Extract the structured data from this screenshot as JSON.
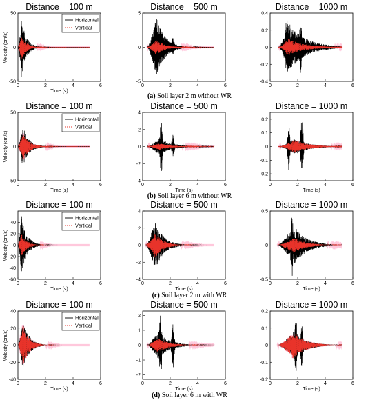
{
  "legend": {
    "horizontal": "Horizontal",
    "vertical": "Vertical"
  },
  "colors": {
    "horizontal": "#000000",
    "vertical": "#e8332a",
    "vertical_halo": "#ffc8dc"
  },
  "rows": [
    {
      "caption_letter": "(a)",
      "caption_text": " Soil layer 2 m without WR",
      "panels": [
        {
          "title": "Distance = 100 m",
          "ylabel": "Velocity (cm/s)",
          "xlabel": "Time (s)",
          "xlim": [
            0,
            6
          ],
          "ylim": [
            -50,
            50
          ],
          "yticks": [
            "50",
            "0",
            "-50"
          ],
          "ytick_values": [
            50,
            0,
            -50
          ],
          "xticks": [
            "0",
            "2",
            "4",
            "6"
          ],
          "legend": true,
          "signal": {
            "start": 0.0,
            "peak": 0.25,
            "decay": 0.35,
            "end": 5.2,
            "amp_h": 45,
            "amp_v": 20,
            "bursts": []
          }
        },
        {
          "title": "Distance = 500 m",
          "ylabel": "",
          "xlabel": "",
          "xlim": [
            0,
            6
          ],
          "ylim": [
            -5,
            5
          ],
          "yticks": [
            "5",
            "0",
            "-5"
          ],
          "ytick_values": [
            5,
            0,
            -5
          ],
          "xticks": [
            "0",
            "2",
            "4",
            "6"
          ],
          "legend": false,
          "signal": {
            "start": 0.3,
            "peak": 1.0,
            "decay": 0.6,
            "end": 5.2,
            "amp_h": 4.5,
            "amp_v": 1.2,
            "bursts": [
              [
                1.2,
                3.8
              ],
              [
                2.2,
                1.5
              ]
            ]
          }
        },
        {
          "title": "Distance = 1000 m",
          "ylabel": "",
          "xlabel": "",
          "xlim": [
            0,
            6
          ],
          "ylim": [
            -0.4,
            0.4
          ],
          "yticks": [
            "0.4",
            "0.2",
            "0",
            "-0.2",
            "-0.4"
          ],
          "ytick_values": [
            0.4,
            0.2,
            0,
            -0.2,
            -0.4
          ],
          "xticks": [
            "0",
            "2",
            "4",
            "6"
          ],
          "legend": false,
          "signal": {
            "start": 0.6,
            "peak": 1.3,
            "decay": 1.2,
            "end": 5.2,
            "amp_h": 0.3,
            "amp_v": 0.1,
            "bursts": [
              [
                1.2,
                0.35
              ],
              [
                2.2,
                0.3
              ]
            ]
          }
        }
      ]
    },
    {
      "caption_letter": "(b)",
      "caption_text": " Soil layer 6 m without WR",
      "panels": [
        {
          "title": "Distance = 100 m",
          "ylabel": "Velocity (cm/s)",
          "xlabel": "Time (s)",
          "xlim": [
            0,
            6
          ],
          "ylim": [
            -50,
            50
          ],
          "yticks": [
            "50",
            "0",
            "-50"
          ],
          "ytick_values": [
            50,
            0,
            -50
          ],
          "xticks": [
            "0",
            "2",
            "4",
            "6"
          ],
          "legend": true,
          "signal": {
            "start": 0.0,
            "peak": 0.35,
            "decay": 0.45,
            "end": 5.2,
            "amp_h": 30,
            "amp_v": 22,
            "bursts": []
          }
        },
        {
          "title": "Distance = 500 m",
          "ylabel": "",
          "xlabel": "Time (s)",
          "xlim": [
            0,
            6
          ],
          "ylim": [
            -4,
            4
          ],
          "yticks": [
            "4",
            "2",
            "0",
            "-2",
            "-4"
          ],
          "ytick_values": [
            4,
            2,
            0,
            -2,
            -4
          ],
          "xticks": [
            "0",
            "2",
            "4",
            "6"
          ],
          "legend": false,
          "signal": {
            "start": 0.3,
            "peak": 1.2,
            "decay": 0.9,
            "end": 5.2,
            "amp_h": 1.0,
            "amp_v": 0.4,
            "bursts": [
              [
                1.35,
                3.2
              ],
              [
                2.2,
                1.4
              ]
            ]
          }
        },
        {
          "title": "Distance = 1000 m",
          "ylabel": "",
          "xlabel": "Time (s)",
          "xlim": [
            0,
            6
          ],
          "ylim": [
            -0.25,
            0.25
          ],
          "yticks": [
            "0.2",
            "0.1",
            "0",
            "-0.1",
            "-0.2"
          ],
          "ytick_values": [
            0.2,
            0.1,
            0,
            -0.1,
            -0.2
          ],
          "xticks": [
            "0",
            "2",
            "4",
            "6"
          ],
          "legend": false,
          "signal": {
            "start": 0.6,
            "peak": 1.8,
            "decay": 1.0,
            "end": 5.2,
            "amp_h": 0.06,
            "amp_v": 0.05,
            "bursts": [
              [
                1.35,
                0.18
              ],
              [
                2.3,
                0.22
              ]
            ]
          }
        }
      ]
    },
    {
      "caption_letter": "(c)",
      "caption_text": " Soil layer 2 m with WR",
      "panels": [
        {
          "title": "Distance = 100 m",
          "ylabel": "Velocity (cm/s)",
          "xlabel": "Time (s)",
          "xlim": [
            0,
            6
          ],
          "ylim": [
            -60,
            60
          ],
          "yticks": [
            "40",
            "20",
            "0",
            "-20",
            "-40",
            "-60"
          ],
          "ytick_values": [
            40,
            20,
            0,
            -20,
            -40,
            -60
          ],
          "xticks": [
            "0",
            "2",
            "4",
            "6"
          ],
          "legend": true,
          "signal": {
            "start": 0.0,
            "peak": 0.25,
            "decay": 0.4,
            "end": 5.2,
            "amp_h": 55,
            "amp_v": 20,
            "bursts": []
          }
        },
        {
          "title": "Distance = 500 m",
          "ylabel": "",
          "xlabel": "Time (s)",
          "xlim": [
            0,
            6
          ],
          "ylim": [
            -4,
            4
          ],
          "yticks": [
            "4",
            "2",
            "0",
            "-2",
            "-4"
          ],
          "ytick_values": [
            4,
            2,
            0,
            -2,
            -4
          ],
          "xticks": [
            "0",
            "2",
            "4",
            "6"
          ],
          "legend": false,
          "signal": {
            "start": 0.2,
            "peak": 0.9,
            "decay": 0.6,
            "end": 5.2,
            "amp_h": 3.0,
            "amp_v": 1.5,
            "bursts": []
          }
        },
        {
          "title": "Distance = 1000 m",
          "ylabel": "",
          "xlabel": "Time (s)",
          "xlim": [
            0,
            6
          ],
          "ylim": [
            -0.5,
            0.5
          ],
          "yticks": [
            "0.5",
            "0",
            "-0.5"
          ],
          "ytick_values": [
            0.5,
            0,
            -0.5
          ],
          "xticks": [
            "0",
            "2",
            "4",
            "6"
          ],
          "legend": false,
          "signal": {
            "start": 0.5,
            "peak": 1.7,
            "decay": 0.9,
            "end": 5.2,
            "amp_h": 0.3,
            "amp_v": 0.12,
            "bursts": [
              [
                1.6,
                0.45
              ]
            ]
          }
        }
      ]
    },
    {
      "caption_letter": "(d)",
      "caption_text": " Soil layer 6 m with WR",
      "panels": [
        {
          "title": "Distance = 100 m",
          "ylabel": "Velocity (cm/s)",
          "xlabel": "Time (s)",
          "xlim": [
            0,
            6
          ],
          "ylim": [
            -40,
            40
          ],
          "yticks": [
            "40",
            "20",
            "0",
            "-20",
            "-40"
          ],
          "ytick_values": [
            40,
            20,
            0,
            -20,
            -40
          ],
          "xticks": [
            "0",
            "2",
            "4",
            "6"
          ],
          "legend": true,
          "signal": {
            "start": 0.0,
            "peak": 0.35,
            "decay": 0.45,
            "end": 5.2,
            "amp_h": 30,
            "amp_v": 25,
            "bursts": []
          }
        },
        {
          "title": "Distance = 500 m",
          "ylabel": "",
          "xlabel": "Time (s)",
          "xlim": [
            0,
            6
          ],
          "ylim": [
            -2.3,
            2.3
          ],
          "yticks": [
            "2",
            "1",
            "0",
            "-1",
            "-2"
          ],
          "ytick_values": [
            2,
            1,
            0,
            -1,
            -2
          ],
          "xticks": [
            "0",
            "2",
            "4",
            "6"
          ],
          "legend": false,
          "signal": {
            "start": 0.3,
            "peak": 1.1,
            "decay": 0.8,
            "end": 5.2,
            "amp_h": 1.0,
            "amp_v": 0.5,
            "bursts": [
              [
                1.3,
                2.2
              ],
              [
                2.2,
                1.6
              ]
            ]
          }
        },
        {
          "title": "Distance = 1000 m",
          "ylabel": "",
          "xlabel": "Time (s)",
          "xlim": [
            0,
            6
          ],
          "ylim": [
            -0.2,
            0.2
          ],
          "yticks": [
            "0.2",
            "0.1",
            "0",
            "-0.1",
            "-0.2"
          ],
          "ytick_values": [
            0.2,
            0.1,
            0,
            -0.1,
            -0.2
          ],
          "xticks": [
            "0",
            "2",
            "4",
            "6"
          ],
          "legend": false,
          "signal": {
            "start": 0.5,
            "peak": 1.7,
            "decay": 0.9,
            "end": 5.2,
            "amp_h": 0.08,
            "amp_v": 0.08,
            "bursts": [
              [
                1.85,
                0.18
              ],
              [
                2.3,
                0.14
              ]
            ]
          }
        }
      ]
    }
  ],
  "chart_data": [
    {
      "type": "line",
      "title": "Distance = 100 m",
      "group": "(a) Soil layer 2 m without WR",
      "xlabel": "Time (s)",
      "ylabel": "Velocity (cm/s)",
      "xlim": [
        0,
        6
      ],
      "ylim": [
        -50,
        50
      ],
      "series": [
        {
          "name": "Horizontal",
          "peak_abs": 45,
          "duration": [
            0,
            5.2
          ]
        },
        {
          "name": "Vertical",
          "peak_abs": 20,
          "duration": [
            0,
            5.2
          ]
        }
      ]
    },
    {
      "type": "line",
      "title": "Distance = 500 m",
      "group": "(a) Soil layer 2 m without WR",
      "xlim": [
        0,
        6
      ],
      "ylim": [
        -5,
        5
      ],
      "series": [
        {
          "name": "Horizontal",
          "peak_abs": 4.5,
          "duration": [
            0.3,
            5.2
          ]
        },
        {
          "name": "Vertical",
          "peak_abs": 1.2,
          "duration": [
            0.3,
            5.2
          ]
        }
      ]
    },
    {
      "type": "line",
      "title": "Distance = 1000 m",
      "group": "(a) Soil layer 2 m without WR",
      "xlim": [
        0,
        6
      ],
      "ylim": [
        -0.4,
        0.4
      ],
      "series": [
        {
          "name": "Horizontal",
          "peak_abs": 0.35,
          "duration": [
            0.6,
            5.2
          ]
        },
        {
          "name": "Vertical",
          "peak_abs": 0.1,
          "duration": [
            0.6,
            5.2
          ]
        }
      ]
    },
    {
      "type": "line",
      "title": "Distance = 100 m",
      "group": "(b) Soil layer 6 m without WR",
      "xlabel": "Time (s)",
      "ylabel": "Velocity (cm/s)",
      "xlim": [
        0,
        6
      ],
      "ylim": [
        -50,
        50
      ],
      "series": [
        {
          "name": "Horizontal",
          "peak_abs": 30
        },
        {
          "name": "Vertical",
          "peak_abs": 22
        }
      ]
    },
    {
      "type": "line",
      "title": "Distance = 500 m",
      "group": "(b) Soil layer 6 m without WR",
      "xlabel": "Time (s)",
      "xlim": [
        0,
        6
      ],
      "ylim": [
        -4,
        4
      ],
      "series": [
        {
          "name": "Horizontal",
          "peak_abs": 3.2
        },
        {
          "name": "Vertical",
          "peak_abs": 0.4
        }
      ]
    },
    {
      "type": "line",
      "title": "Distance = 1000 m",
      "group": "(b) Soil layer 6 m without WR",
      "xlabel": "Time (s)",
      "xlim": [
        0,
        6
      ],
      "ylim": [
        -0.25,
        0.25
      ],
      "series": [
        {
          "name": "Horizontal",
          "peak_abs": 0.22
        },
        {
          "name": "Vertical",
          "peak_abs": 0.05
        }
      ]
    },
    {
      "type": "line",
      "title": "Distance = 100 m",
      "group": "(c) Soil layer 2 m with WR",
      "xlabel": "Time (s)",
      "ylabel": "Velocity (cm/s)",
      "xlim": [
        0,
        6
      ],
      "ylim": [
        -60,
        60
      ],
      "series": [
        {
          "name": "Horizontal",
          "peak_abs": 55
        },
        {
          "name": "Vertical",
          "peak_abs": 20
        }
      ]
    },
    {
      "type": "line",
      "title": "Distance = 500 m",
      "group": "(c) Soil layer 2 m with WR",
      "xlabel": "Time (s)",
      "xlim": [
        0,
        6
      ],
      "ylim": [
        -4,
        4
      ],
      "series": [
        {
          "name": "Horizontal",
          "peak_abs": 3.0
        },
        {
          "name": "Vertical",
          "peak_abs": 1.5
        }
      ]
    },
    {
      "type": "line",
      "title": "Distance = 1000 m",
      "group": "(c) Soil layer 2 m with WR",
      "xlabel": "Time (s)",
      "xlim": [
        0,
        6
      ],
      "ylim": [
        -0.5,
        0.5
      ],
      "series": [
        {
          "name": "Horizontal",
          "peak_abs": 0.45
        },
        {
          "name": "Vertical",
          "peak_abs": 0.12
        }
      ]
    },
    {
      "type": "line",
      "title": "Distance = 100 m",
      "group": "(d) Soil layer 6 m with WR",
      "xlabel": "Time (s)",
      "ylabel": "Velocity (cm/s)",
      "xlim": [
        0,
        6
      ],
      "ylim": [
        -40,
        40
      ],
      "series": [
        {
          "name": "Horizontal",
          "peak_abs": 30
        },
        {
          "name": "Vertical",
          "peak_abs": 25
        }
      ]
    },
    {
      "type": "line",
      "title": "Distance = 500 m",
      "group": "(d) Soil layer 6 m with WR",
      "xlabel": "Time (s)",
      "xlim": [
        0,
        6
      ],
      "ylim": [
        -2.3,
        2.3
      ],
      "series": [
        {
          "name": "Horizontal",
          "peak_abs": 2.2
        },
        {
          "name": "Vertical",
          "peak_abs": 0.5
        }
      ]
    },
    {
      "type": "line",
      "title": "Distance = 1000 m",
      "group": "(d) Soil layer 6 m with WR",
      "xlabel": "Time (s)",
      "xlim": [
        0,
        6
      ],
      "ylim": [
        -0.2,
        0.2
      ],
      "series": [
        {
          "name": "Horizontal",
          "peak_abs": 0.18
        },
        {
          "name": "Vertical",
          "peak_abs": 0.08
        }
      ]
    }
  ]
}
